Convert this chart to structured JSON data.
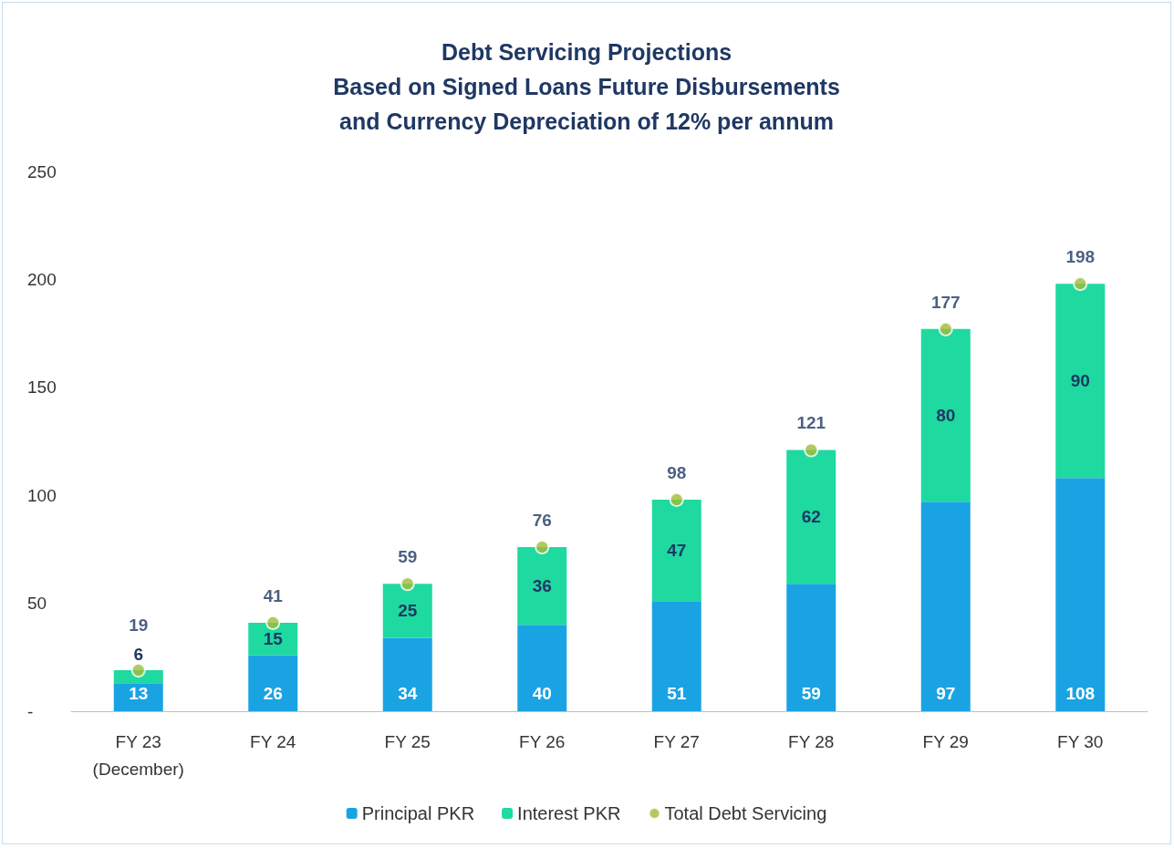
{
  "chart_data": {
    "type": "bar",
    "title": "Debt Servicing Projections\nBased on Signed Loans Future Disbursements\nand Currency Depreciation of 12% per annum",
    "categories": [
      "FY 23\n(December)",
      "FY 24",
      "FY 25",
      "FY 26",
      "FY 27",
      "FY 28",
      "FY 29",
      "FY 30"
    ],
    "stacked": true,
    "series": [
      {
        "name": "Principal PKR",
        "color": "#1aa3e3",
        "values": [
          13,
          26,
          34,
          40,
          51,
          59,
          97,
          108
        ]
      },
      {
        "name": "Interest PKR",
        "color": "#1ed9a0",
        "values": [
          6,
          15,
          25,
          36,
          47,
          62,
          80,
          90
        ]
      },
      {
        "name": "Total Debt Servicing",
        "type": "scatter",
        "color": "#9dbb3a",
        "x": [
          "FY 23\n(December)",
          "FY 24",
          "FY 25",
          "FY 26",
          "FY 27",
          "FY 28",
          "FY 29",
          "FY 30"
        ],
        "values": [
          19,
          41,
          59,
          76,
          98,
          121,
          177,
          198
        ]
      }
    ],
    "ylim": [
      0,
      250
    ],
    "yticks": [
      {
        "value": 0,
        "label": "-"
      },
      50,
      100,
      150,
      200,
      250
    ],
    "grid": false,
    "legend": "bottom",
    "marker": "circle",
    "data_labels": true
  }
}
